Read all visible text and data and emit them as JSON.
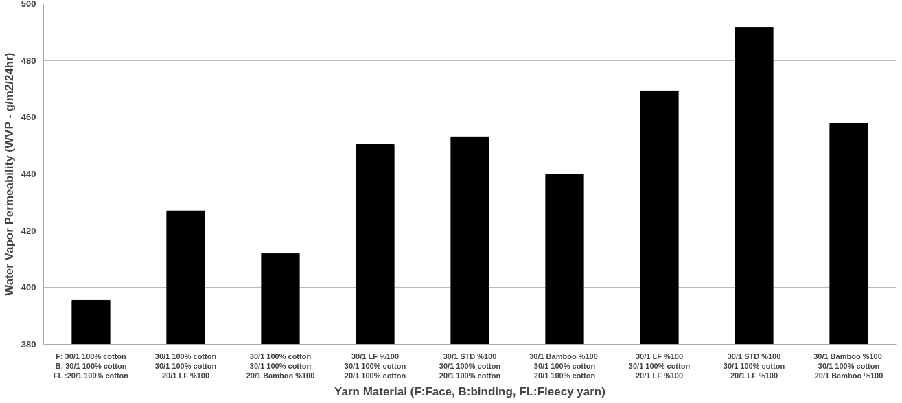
{
  "chart_data": {
    "type": "bar",
    "xlabel": "Yarn Material (F:Face, B:binding, FL:Fleecy yarn)",
    "ylabel": "Water Vapor Permeability (WVP - g/m2/24hr)",
    "categories": [
      "F: 30/1 100% cotton\nB: 30/1 100% cotton\nFL :20/1 100% cotton",
      "30/1 100% cotton\n30/1 100% cotton\n20/1 LF %100",
      "30/1 100% cotton\n30/1 100% cotton\n20/1 Bamboo %100",
      "30/1 LF %100\n30/1 100% cotton\n20/1 100% cotton",
      "30/1 STD %100\n30/1 100% cotton\n20/1 100% cotton",
      "30/1  Bamboo %100\n30/1 100% cotton\n20/1 100% cotton",
      "30/1 LF %100\n30/1 100% cotton\n20/1 LF %100",
      "30/1 STD %100\n30/1 100% cotton\n20/1 LF %100",
      "30/1  Bamboo %100\n30/1 100% cotton\n20/1 Bamboo %100"
    ],
    "values": [
      395.5,
      427,
      412,
      450.4,
      453.1,
      440,
      469.3,
      491.6,
      457.9
    ],
    "color": "#000000",
    "ylim": [
      380,
      500
    ],
    "yticks": [
      380,
      400,
      420,
      440,
      460,
      480,
      500
    ],
    "grid": "y"
  }
}
